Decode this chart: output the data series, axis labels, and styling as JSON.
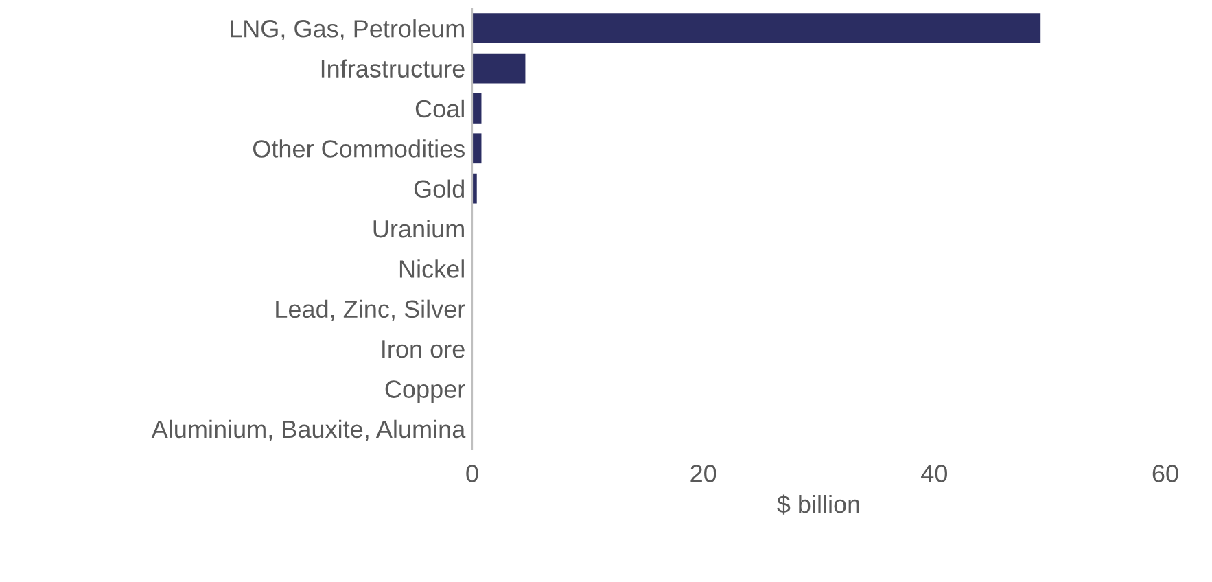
{
  "chart_data": {
    "type": "bar",
    "orientation": "horizontal",
    "xlabel": "$ billion",
    "categories": [
      "LNG, Gas, Petroleum",
      "Infrastructure",
      "Coal",
      "Other Commodities",
      "Gold",
      "Uranium",
      "Nickel",
      "Lead, Zinc, Silver",
      "Iron ore",
      "Copper",
      "Aluminium, Bauxite, Alumina"
    ],
    "values": [
      49.2,
      4.6,
      0.8,
      0.8,
      0.4,
      0,
      0,
      0,
      0,
      0,
      0
    ],
    "color": "#2b2d62",
    "xlim": [
      0,
      60
    ],
    "xticks": [
      0,
      20,
      40,
      60
    ],
    "grid": false,
    "legend": false
  }
}
